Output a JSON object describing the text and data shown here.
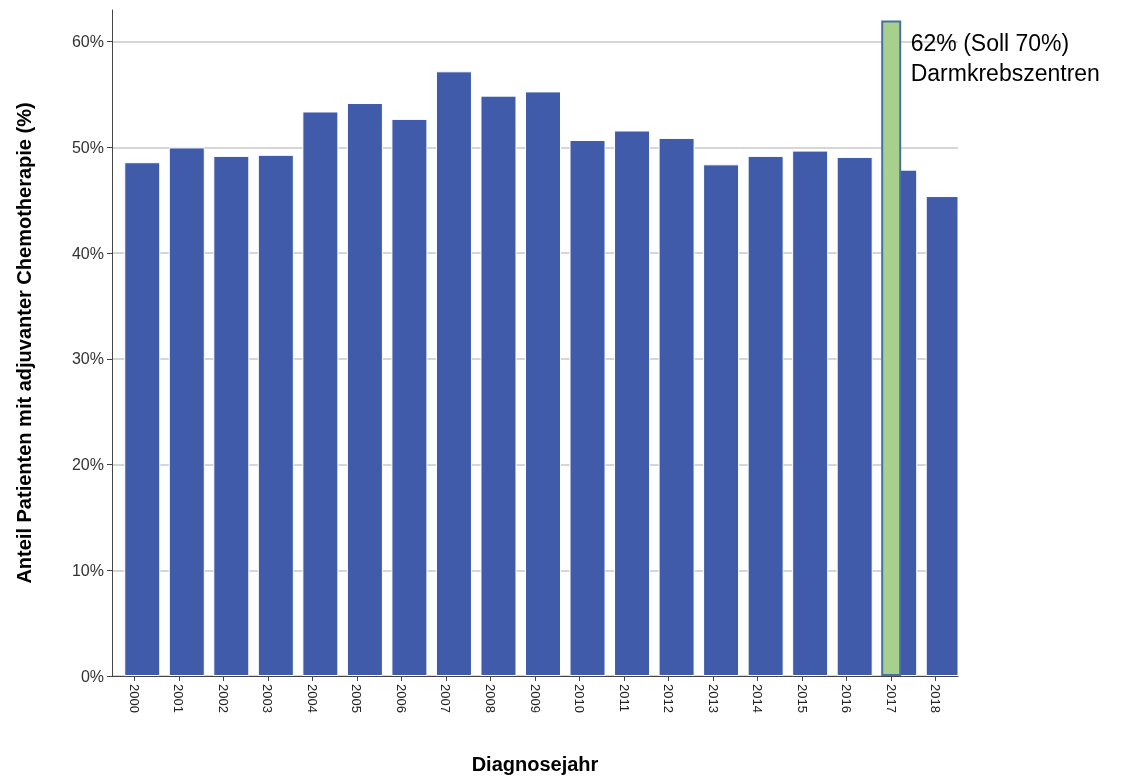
{
  "chart_data": {
    "type": "bar",
    "xlabel": "Diagnosejahr",
    "ylabel": "Anteil Patienten mit adjuvanter Chemotherapie (%)",
    "categories": [
      "2000",
      "2001",
      "2002",
      "2003",
      "2004",
      "2005",
      "2006",
      "2007",
      "2008",
      "2009",
      "2010",
      "2011",
      "2012",
      "2013",
      "2014",
      "2015",
      "2016",
      "2017",
      "2018"
    ],
    "series": [
      {
        "color": "#3f5ba9",
        "values": [
          48.6,
          50.0,
          49.2,
          49.3,
          53.4,
          54.2,
          52.7,
          57.2,
          54.9,
          55.3,
          50.7,
          51.6,
          50.9,
          48.4,
          49.2,
          49.7,
          49.1,
          47.9,
          45.4
        ]
      },
      {
        "color": "#a8d08d",
        "values": [
          null,
          null,
          null,
          null,
          null,
          null,
          null,
          null,
          null,
          null,
          null,
          null,
          null,
          null,
          null,
          null,
          null,
          62,
          null
        ]
      }
    ],
    "annotations": [
      {
        "text": "62% (Soll 70%)\nDarmkrebszentren",
        "x": "2017",
        "y": 62
      }
    ],
    "ylim": [
      0,
      63
    ],
    "yticks": [
      {
        "value": 0,
        "label": "0%"
      },
      {
        "value": 10,
        "label": "10%"
      },
      {
        "value": 20,
        "label": "20%"
      },
      {
        "value": 30,
        "label": "30%"
      },
      {
        "value": 40,
        "label": "40%"
      },
      {
        "value": 50,
        "label": "50%"
      },
      {
        "value": 60,
        "label": "60%"
      }
    ],
    "grid": "y"
  }
}
